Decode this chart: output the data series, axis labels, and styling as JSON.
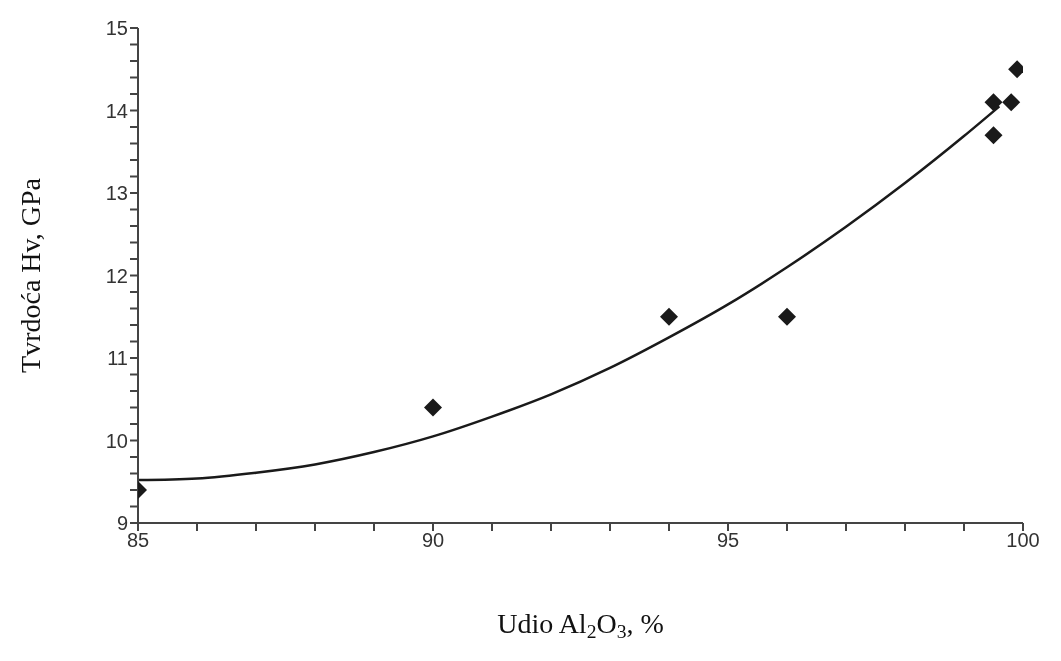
{
  "chart_data": {
    "type": "scatter",
    "xlabel": "Udio Al$_{2}$O$_{3}$, %",
    "ylabel": "Tvrdoća Hv, GPa",
    "marker": "diamond",
    "xlim": [
      85,
      100
    ],
    "ylim": [
      9,
      15
    ],
    "xticks": [
      85,
      {
        "value": 86,
        "label": null
      },
      {
        "value": 87,
        "label": null
      },
      {
        "value": 88,
        "label": null
      },
      {
        "value": 89,
        "label": null
      },
      90,
      {
        "value": 91,
        "label": null
      },
      {
        "value": 92,
        "label": null
      },
      {
        "value": 93,
        "label": null
      },
      {
        "value": 94,
        "label": null
      },
      95,
      {
        "value": 96,
        "label": null
      },
      {
        "value": 97,
        "label": null
      },
      {
        "value": 98,
        "label": null
      },
      {
        "value": 99,
        "label": null
      },
      100
    ],
    "yticks": [
      9,
      {
        "value": 9.2,
        "label": null
      },
      {
        "value": 9.4,
        "label": null
      },
      {
        "value": 9.6,
        "label": null
      },
      {
        "value": 9.8,
        "label": null
      },
      10,
      {
        "value": 10.2,
        "label": null
      },
      {
        "value": 10.4,
        "label": null
      },
      {
        "value": 10.6,
        "label": null
      },
      {
        "value": 10.8,
        "label": null
      },
      11,
      {
        "value": 11.2,
        "label": null
      },
      {
        "value": 11.4,
        "label": null
      },
      {
        "value": 11.6,
        "label": null
      },
      {
        "value": 11.8,
        "label": null
      },
      12,
      {
        "value": 12.2,
        "label": null
      },
      {
        "value": 12.4,
        "label": null
      },
      {
        "value": 12.6,
        "label": null
      },
      {
        "value": 12.8,
        "label": null
      },
      13,
      {
        "value": 13.2,
        "label": null
      },
      {
        "value": 13.4,
        "label": null
      },
      {
        "value": 13.6,
        "label": null
      },
      {
        "value": 13.8,
        "label": null
      },
      14,
      {
        "value": 14.2,
        "label": null
      },
      {
        "value": 14.4,
        "label": null
      },
      {
        "value": 14.6,
        "label": null
      },
      {
        "value": 14.8,
        "label": null
      },
      15
    ],
    "series": [
      {
        "color": "#1a1a1a",
        "x": [
          85,
          90,
          94,
          96,
          99.5,
          99.5,
          99.8,
          99.9
        ],
        "values": [
          9.4,
          10.4,
          11.5,
          11.5,
          14.1,
          13.7,
          14.1,
          14.5
        ]
      },
      {
        "type": "line",
        "color": "#1a1a1a",
        "marker": "none",
        "line_style": "solid",
        "x": [
          85,
          86,
          87,
          88,
          89,
          90,
          91,
          92,
          93,
          94,
          95,
          96,
          97,
          98,
          99,
          99.6
        ],
        "values": [
          9.52,
          9.54,
          9.61,
          9.71,
          9.86,
          10.05,
          10.29,
          10.56,
          10.88,
          11.25,
          11.65,
          12.1,
          12.59,
          13.12,
          13.69,
          14.05
        ]
      }
    ]
  }
}
